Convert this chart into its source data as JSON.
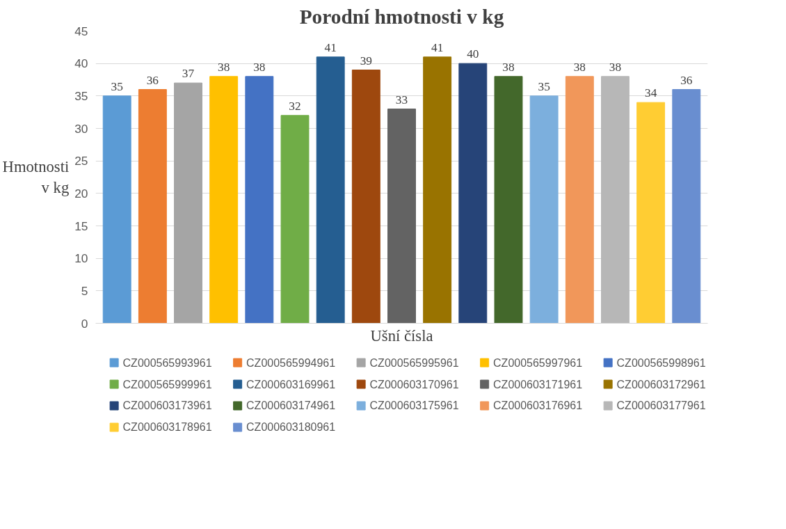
{
  "chart_data": {
    "type": "bar",
    "title": "Porodní hmotnosti v kg",
    "xlabel": "Ušní čísla",
    "ylabel": "Hmotnosti\nv kg",
    "categories": [
      null
    ],
    "ylim": [
      0,
      45
    ],
    "yticks": [
      0,
      5,
      10,
      15,
      20,
      25,
      30,
      35,
      40,
      45
    ],
    "grid": "y",
    "legend": "bottom",
    "data_labels": true,
    "tick_labels": "y",
    "series": [
      {
        "name": "CZ000565993961",
        "color": "#5b9bd5",
        "values": [
          35
        ]
      },
      {
        "name": "CZ000565994961",
        "color": "#ed7d31",
        "values": [
          36
        ]
      },
      {
        "name": "CZ000565995961",
        "color": "#a5a5a5",
        "values": [
          37
        ]
      },
      {
        "name": "CZ000565997961",
        "color": "#ffc000",
        "values": [
          38
        ]
      },
      {
        "name": "CZ000565998961",
        "color": "#4472c4",
        "values": [
          38
        ]
      },
      {
        "name": "CZ000565999961",
        "color": "#70ad47",
        "values": [
          32
        ]
      },
      {
        "name": "CZ000603169961",
        "color": "#255e91",
        "values": [
          41
        ]
      },
      {
        "name": "CZ000603170961",
        "color": "#9e480e",
        "values": [
          39
        ]
      },
      {
        "name": "CZ000603171961",
        "color": "#636363",
        "values": [
          33
        ]
      },
      {
        "name": "CZ000603172961",
        "color": "#997300",
        "values": [
          41
        ]
      },
      {
        "name": "CZ000603173961",
        "color": "#264478",
        "values": [
          40
        ]
      },
      {
        "name": "CZ000603174961",
        "color": "#43682b",
        "values": [
          38
        ]
      },
      {
        "name": "CZ000603175961",
        "color": "#7cafdd",
        "values": [
          35
        ]
      },
      {
        "name": "CZ000603176961",
        "color": "#f1975a",
        "values": [
          38
        ]
      },
      {
        "name": "CZ000603177961",
        "color": "#b7b7b7",
        "values": [
          38
        ]
      },
      {
        "name": "CZ000603178961",
        "color": "#ffcd33",
        "values": [
          34
        ]
      },
      {
        "name": "CZ000603180961",
        "color": "#698ed0",
        "values": [
          36
        ]
      }
    ]
  }
}
